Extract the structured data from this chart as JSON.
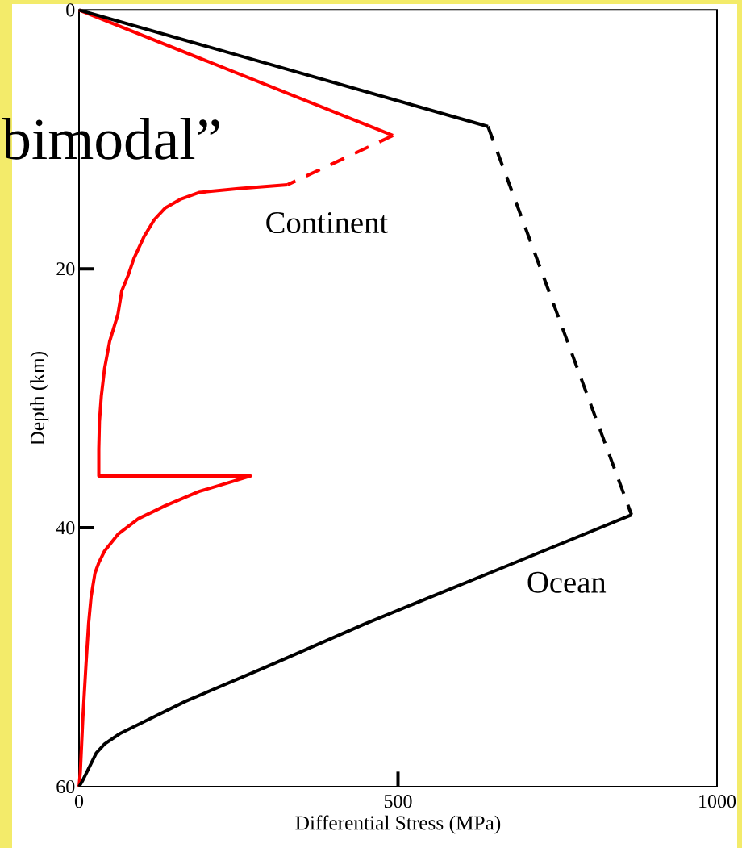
{
  "chart_data": {
    "type": "line",
    "xlabel": "Differential Stress (MPa)",
    "ylabel": "Depth (km)",
    "annotations": [
      "bimodal”"
    ],
    "xlim": [
      0,
      1000
    ],
    "ylim": [
      60,
      0
    ],
    "xticks": [
      0,
      500,
      1000
    ],
    "yticks": [
      0,
      20,
      40,
      60
    ],
    "series": [
      {
        "color": "#ff0000",
        "line_style": "solid",
        "x": [
          0,
          492
        ],
        "values": [
          0,
          9.7
        ]
      },
      {
        "color": "#ff0000",
        "line_style": "dashed",
        "x": [
          492,
          327
        ],
        "values": [
          9.7,
          13.5
        ]
      },
      {
        "name": "Continent",
        "color": "#ff0000",
        "line_style": "solid",
        "x": [
          327,
          250,
          188,
          160,
          135,
          118,
          102,
          86,
          77,
          67,
          61,
          48,
          40,
          35,
          32,
          31,
          31,
          269,
          242,
          188,
          135,
          93,
          61,
          40,
          31,
          25,
          19,
          15,
          11,
          6,
          2,
          0
        ],
        "values": [
          13.5,
          13.8,
          14.1,
          14.6,
          15.3,
          16.2,
          17.5,
          19.2,
          20.5,
          21.7,
          23.5,
          25.6,
          27.7,
          29.8,
          31.8,
          33.9,
          36.0,
          36.0,
          36.4,
          37.2,
          38.3,
          39.3,
          40.5,
          41.8,
          42.7,
          43.5,
          45.3,
          47.4,
          50.5,
          54.7,
          58.9,
          60
        ]
      },
      {
        "color": "#000000",
        "line_style": "solid",
        "x": [
          0,
          641
        ],
        "values": [
          0,
          9.0
        ]
      },
      {
        "color": "#000000",
        "line_style": "dashed",
        "x": [
          641,
          866
        ],
        "values": [
          9.0,
          39.0
        ]
      },
      {
        "name": "Ocean",
        "color": "#000000",
        "line_style": "solid",
        "x": [
          866,
          668,
          449,
          291,
          167,
          105,
          64,
          40,
          27,
          17,
          6,
          0
        ],
        "values": [
          39.0,
          43.0,
          47.4,
          50.8,
          53.4,
          54.9,
          55.9,
          56.7,
          57.4,
          58.4,
          59.5,
          60
        ]
      }
    ]
  }
}
